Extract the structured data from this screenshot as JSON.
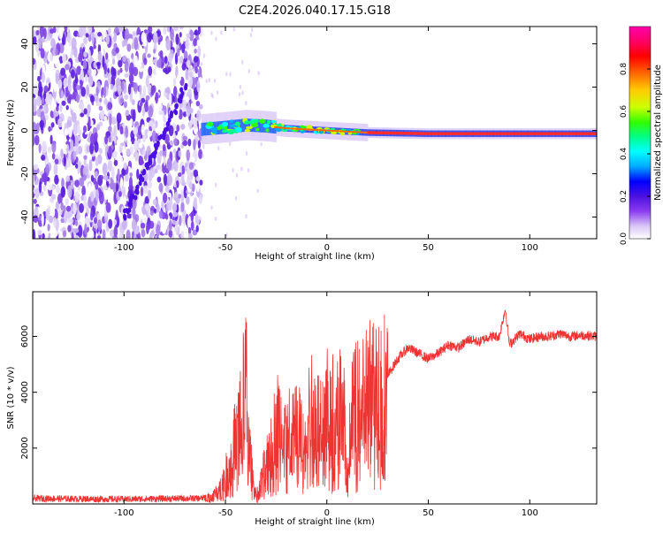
{
  "title": "C2E4.2026.040.17.15.G18",
  "chart_data": [
    {
      "type": "heatmap",
      "xlabel": "Height of straight line (km)",
      "ylabel": "Frequency (Hz)",
      "xlim": [
        -145,
        133
      ],
      "ylim": [
        -50,
        48
      ],
      "xticks": [
        -100,
        -50,
        0,
        50,
        100
      ],
      "yticks": [
        -40,
        -20,
        0,
        20,
        40
      ],
      "colorbar": {
        "label": "Normalized spectral amplitude",
        "range": [
          0,
          1
        ],
        "ticks": [
          "0.0",
          "0.2",
          "0.4",
          "0.6",
          "0.8"
        ],
        "colors": [
          "#ffffff",
          "#d9c6f5",
          "#8a3cf0",
          "#4b10e0",
          "#0000ff",
          "#00aaff",
          "#00ffff",
          "#00ff88",
          "#33ff00",
          "#ccff00",
          "#ffcc00",
          "#ff6600",
          "#ff0000",
          "#ff0066",
          "#ff00aa"
        ]
      },
      "features": {
        "noise_region_x": [
          -145,
          -62
        ],
        "diagonal_track": {
          "from": [
            -100,
            -40
          ],
          "to": [
            -70,
            20
          ]
        },
        "carrier_line": [
          {
            "x": -62,
            "y": 0.5
          },
          {
            "x": -50,
            "y": 1.5
          },
          {
            "x": -40,
            "y": 2.5
          },
          {
            "x": -30,
            "y": 2
          },
          {
            "x": -20,
            "y": 1
          },
          {
            "x": -10,
            "y": 0.5
          },
          {
            "x": 0,
            "y": 0
          },
          {
            "x": 20,
            "y": -1
          },
          {
            "x": 50,
            "y": -1.5
          },
          {
            "x": 100,
            "y": -1.5
          },
          {
            "x": 133,
            "y": -1.5
          }
        ]
      }
    },
    {
      "type": "line",
      "xlabel": "Height of straight line (km)",
      "ylabel": "SNR (10 * v/v)",
      "xlim": [
        -145,
        133
      ],
      "ylim": [
        0,
        7600
      ],
      "xticks": [
        -100,
        -50,
        0,
        50,
        100
      ],
      "yticks": [
        2000,
        4000,
        6000
      ],
      "color": "#ee3333",
      "series": [
        {
          "values": [
            {
              "x": -145,
              "y": 200
            },
            {
              "x": -120,
              "y": 180
            },
            {
              "x": -100,
              "y": 170
            },
            {
              "x": -80,
              "y": 190
            },
            {
              "x": -62,
              "y": 200
            },
            {
              "x": -56,
              "y": 300
            },
            {
              "x": -52,
              "y": 700
            },
            {
              "x": -48,
              "y": 1500
            },
            {
              "x": -45,
              "y": 2500
            },
            {
              "x": -42,
              "y": 3500
            },
            {
              "x": -40,
              "y": 4800
            },
            {
              "x": -38,
              "y": 2000
            },
            {
              "x": -36,
              "y": 600
            },
            {
              "x": -34,
              "y": 400
            },
            {
              "x": -32,
              "y": 1000
            },
            {
              "x": -28,
              "y": 2200
            },
            {
              "x": -24,
              "y": 3200
            },
            {
              "x": -20,
              "y": 2500
            },
            {
              "x": -16,
              "y": 3300
            },
            {
              "x": -12,
              "y": 2700
            },
            {
              "x": -8,
              "y": 3500
            },
            {
              "x": -4,
              "y": 3200
            },
            {
              "x": 0,
              "y": 3700
            },
            {
              "x": 4,
              "y": 3500
            },
            {
              "x": 8,
              "y": 4000
            },
            {
              "x": 10,
              "y": 1000
            },
            {
              "x": 12,
              "y": 3300
            },
            {
              "x": 16,
              "y": 4100
            },
            {
              "x": 20,
              "y": 4300
            },
            {
              "x": 25,
              "y": 4500
            },
            {
              "x": 30,
              "y": 4600
            },
            {
              "x": 35,
              "y": 5200
            },
            {
              "x": 40,
              "y": 5600
            },
            {
              "x": 45,
              "y": 5400
            },
            {
              "x": 50,
              "y": 5200
            },
            {
              "x": 55,
              "y": 5400
            },
            {
              "x": 60,
              "y": 5700
            },
            {
              "x": 65,
              "y": 5600
            },
            {
              "x": 70,
              "y": 5900
            },
            {
              "x": 75,
              "y": 5800
            },
            {
              "x": 80,
              "y": 6000
            },
            {
              "x": 85,
              "y": 6000
            },
            {
              "x": 88,
              "y": 7000
            },
            {
              "x": 90,
              "y": 5700
            },
            {
              "x": 95,
              "y": 6100
            },
            {
              "x": 100,
              "y": 5900
            },
            {
              "x": 105,
              "y": 6000
            },
            {
              "x": 110,
              "y": 6000
            },
            {
              "x": 115,
              "y": 6100
            },
            {
              "x": 120,
              "y": 6000
            },
            {
              "x": 125,
              "y": 6050
            },
            {
              "x": 133,
              "y": 6000
            }
          ]
        }
      ]
    }
  ]
}
